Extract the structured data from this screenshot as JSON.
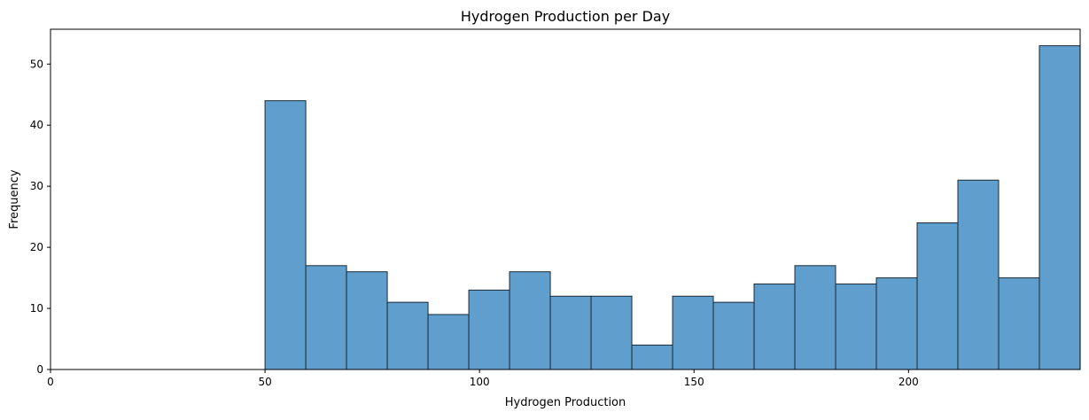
{
  "chart_data": {
    "type": "histogram",
    "title": "Hydrogen Production per Day",
    "xlabel": "Hydrogen Production",
    "ylabel": "Frequency",
    "xlim": [
      0,
      240
    ],
    "ylim": [
      0,
      55.7
    ],
    "xticks": [
      0,
      50,
      100,
      150,
      200
    ],
    "yticks": [
      0,
      10,
      20,
      30,
      40,
      50
    ],
    "bin_edges": [
      50,
      59.5,
      69,
      78.5,
      88,
      97.5,
      107,
      116.5,
      126,
      135.5,
      145,
      154.5,
      164,
      173.5,
      183,
      192.5,
      202,
      211.5,
      221,
      230.5,
      240
    ],
    "counts": [
      44,
      17,
      16,
      11,
      9,
      13,
      16,
      12,
      12,
      4,
      12,
      11,
      14,
      17,
      14,
      15,
      24,
      31,
      15,
      53
    ],
    "bar_color": "#5f9ecd",
    "edge_color": "#1c2a36",
    "grid": false,
    "legend": "none"
  }
}
